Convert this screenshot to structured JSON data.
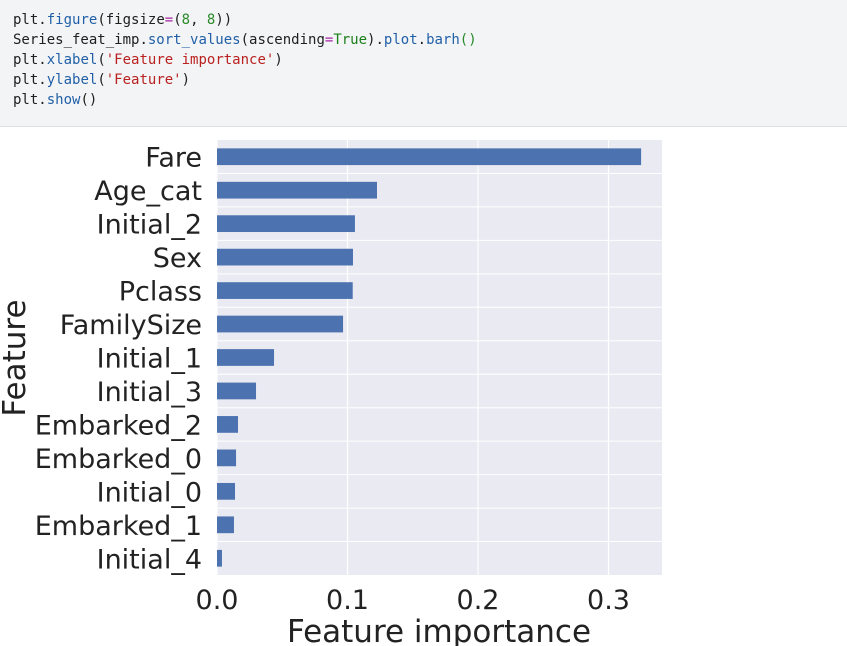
{
  "code": {
    "lines": [
      {
        "tokens": [
          {
            "text": "plt",
            "color": "#202020"
          },
          {
            "text": ".",
            "color": "#202020"
          },
          {
            "text": "figure",
            "color": "#2160a8"
          },
          {
            "text": "(figsize",
            "color": "#202020"
          },
          {
            "text": "=",
            "color": "#a626a4"
          },
          {
            "text": "(",
            "color": "#202020"
          },
          {
            "text": "8",
            "color": "#2a8a2a"
          },
          {
            "text": ", ",
            "color": "#202020"
          },
          {
            "text": "8",
            "color": "#2a8a2a"
          },
          {
            "text": "))",
            "color": "#202020"
          }
        ]
      },
      {
        "tokens": [
          {
            "text": "Series_feat_imp",
            "color": "#202020"
          },
          {
            "text": ".",
            "color": "#202020"
          },
          {
            "text": "sort_values",
            "color": "#2160a8"
          },
          {
            "text": "(ascending",
            "color": "#202020"
          },
          {
            "text": "=",
            "color": "#a626a4"
          },
          {
            "text": "True",
            "color": "#1a7f1a"
          },
          {
            "text": ").",
            "color": "#202020"
          },
          {
            "text": "plot",
            "color": "#2160a8"
          },
          {
            "text": ".",
            "color": "#202020"
          },
          {
            "text": "barh",
            "color": "#2160a8"
          },
          {
            "text": "()",
            "color": "#2a8a2a"
          }
        ]
      },
      {
        "tokens": [
          {
            "text": "plt",
            "color": "#202020"
          },
          {
            "text": ".",
            "color": "#202020"
          },
          {
            "text": "xlabel",
            "color": "#2160a8"
          },
          {
            "text": "(",
            "color": "#202020"
          },
          {
            "text": "'Feature importance'",
            "color": "#ba2121"
          },
          {
            "text": ")",
            "color": "#202020"
          }
        ]
      },
      {
        "tokens": [
          {
            "text": "plt",
            "color": "#202020"
          },
          {
            "text": ".",
            "color": "#202020"
          },
          {
            "text": "ylabel",
            "color": "#2160a8"
          },
          {
            "text": "(",
            "color": "#202020"
          },
          {
            "text": "'Feature'",
            "color": "#ba2121"
          },
          {
            "text": ")",
            "color": "#202020"
          }
        ]
      },
      {
        "tokens": [
          {
            "text": "plt",
            "color": "#202020"
          },
          {
            "text": ".",
            "color": "#202020"
          },
          {
            "text": "show",
            "color": "#2160a8"
          },
          {
            "text": "()",
            "color": "#202020"
          }
        ]
      }
    ]
  },
  "chart_data": {
    "type": "barh",
    "xlabel": "Feature importance",
    "ylabel": "Feature",
    "categories": [
      "Fare",
      "Age_cat",
      "Initial_2",
      "Sex",
      "Pclass",
      "FamilySize",
      "Initial_1",
      "Initial_3",
      "Embarked_2",
      "Embarked_0",
      "Initial_0",
      "Embarked_1",
      "Initial_4"
    ],
    "values": [
      0.325,
      0.1226,
      0.1057,
      0.1042,
      0.104,
      0.0966,
      0.0437,
      0.0299,
      0.0161,
      0.0146,
      0.0138,
      0.013,
      0.0038
    ],
    "color": "#4c72b0",
    "xlim": [
      0,
      0.341
    ],
    "xticks": [
      {
        "value": 0,
        "label": "0.0"
      },
      0.1,
      0.2,
      0.3
    ],
    "grid": true
  }
}
